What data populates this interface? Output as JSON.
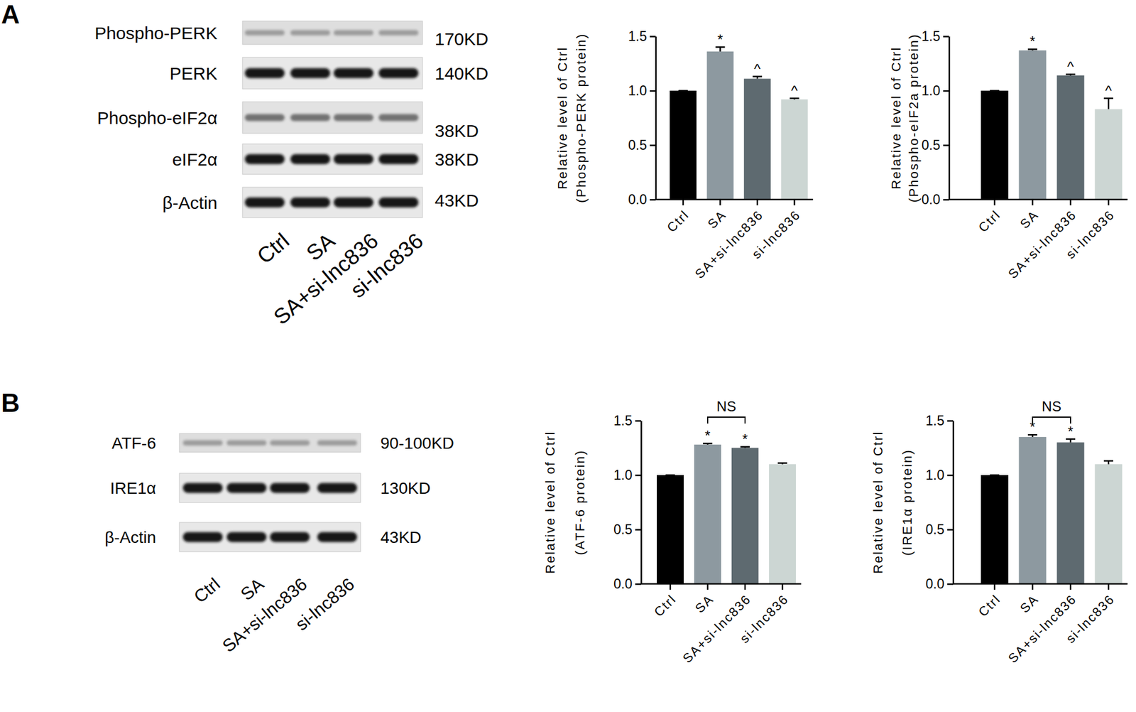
{
  "panels": [
    "A",
    "B"
  ],
  "blots": [
    {
      "rows": [
        {
          "label": "Phospho-PERK",
          "size": "170KD"
        },
        {
          "label": "PERK",
          "size": "140KD"
        },
        {
          "label": "Phospho-eIF2α",
          "size": "38KD"
        },
        {
          "label": "eIF2α",
          "size": "38KD"
        },
        {
          "label": "β-Actin",
          "size": "43KD"
        }
      ],
      "lanes": [
        "Ctrl",
        "SA",
        "SA+si-lnc836",
        "si-lnc836"
      ]
    },
    {
      "rows": [
        {
          "label": "ATF-6",
          "size": "90-100KD"
        },
        {
          "label": "IRE1α",
          "size": "130KD"
        },
        {
          "label": "β-Actin",
          "size": "43KD"
        }
      ],
      "lanes": [
        "Ctrl",
        "SA",
        "SA+si-lnc836",
        "si-lnc836"
      ]
    }
  ],
  "chart_data": [
    {
      "type": "bar",
      "ylabel": [
        "Relative level of Ctrl",
        "(Phospho-PERK protein)"
      ],
      "categories": [
        "Ctrl",
        "SA",
        "SA+si-lnc836",
        "si-lnc836"
      ],
      "values": [
        1.0,
        1.36,
        1.11,
        0.92
      ],
      "errors": [
        0,
        0.04,
        0.02,
        0.01
      ],
      "colors": [
        "#000000",
        "#8d99a0",
        "#5e6a70",
        "#ccd6d3"
      ],
      "ylim": [
        0,
        1.5
      ],
      "yticks": [
        {
          "value": 0,
          "label": "0.0"
        },
        {
          "value": 0.5,
          "label": "0.5"
        },
        {
          "value": 1,
          "label": "1.0"
        },
        {
          "value": 1.5,
          "label": "1.5"
        }
      ],
      "annotations": [
        {
          "category": "SA",
          "text": "*"
        },
        {
          "category": "SA+si-lnc836",
          "text": "^"
        },
        {
          "category": "si-lnc836",
          "text": "^"
        }
      ]
    },
    {
      "type": "bar",
      "ylabel": [
        "Relative level of Ctrl",
        "(Phospho-eIF2a protein)"
      ],
      "categories": [
        "Ctrl",
        "SA",
        "SA+si-lnc836",
        "si-lnc836"
      ],
      "values": [
        1.0,
        1.37,
        1.14,
        0.83
      ],
      "errors": [
        0,
        0.01,
        0.01,
        0.1
      ],
      "colors": [
        "#000000",
        "#8d99a0",
        "#5e6a70",
        "#ccd6d3"
      ],
      "ylim": [
        0,
        1.5
      ],
      "yticks": [
        {
          "value": 0,
          "label": "0.0"
        },
        {
          "value": 0.5,
          "label": "0.5"
        },
        {
          "value": 1,
          "label": "1.0"
        },
        {
          "value": 1.5,
          "label": "1.5"
        }
      ],
      "annotations": [
        {
          "category": "SA",
          "text": "*"
        },
        {
          "category": "SA+si-lnc836",
          "text": "^"
        },
        {
          "category": "si-lnc836",
          "text": "^"
        }
      ]
    },
    {
      "type": "bar",
      "ylabel": [
        "Relative level of Ctrl",
        "(ATF-6 protein)"
      ],
      "categories": [
        "Ctrl",
        "SA",
        "SA+si-lnc836",
        "si-lnc836"
      ],
      "values": [
        1.0,
        1.28,
        1.25,
        1.1
      ],
      "errors": [
        0,
        0.01,
        0.01,
        0.01
      ],
      "colors": [
        "#000000",
        "#8d99a0",
        "#5e6a70",
        "#ccd6d3"
      ],
      "ylim": [
        0,
        1.5
      ],
      "yticks": [
        {
          "value": 0,
          "label": "0.0"
        },
        {
          "value": 0.5,
          "label": "0.5"
        },
        {
          "value": 1,
          "label": "1.0"
        },
        {
          "value": 1.5,
          "label": "1.5"
        }
      ],
      "annotations": [
        {
          "category": "SA",
          "text": "*"
        },
        {
          "category": "SA+si-lnc836",
          "text": "*"
        }
      ],
      "brackets": [
        {
          "from": "SA",
          "to": "SA+si-lnc836",
          "text": "NS"
        }
      ]
    },
    {
      "type": "bar",
      "ylabel": [
        "Relative level of Ctrl",
        "(IRE1α protein)"
      ],
      "categories": [
        "Ctrl",
        "SA",
        "SA+si-lnc836",
        "si-lnc836"
      ],
      "values": [
        1.0,
        1.35,
        1.3,
        1.1
      ],
      "errors": [
        0,
        0.02,
        0.03,
        0.03
      ],
      "colors": [
        "#000000",
        "#8d99a0",
        "#5e6a70",
        "#ccd6d3"
      ],
      "ylim": [
        0,
        1.5
      ],
      "yticks": [
        {
          "value": 0,
          "label": "0.0"
        },
        {
          "value": 0.5,
          "label": "0.5"
        },
        {
          "value": 1,
          "label": "1.0"
        },
        {
          "value": 1.5,
          "label": "1.5"
        }
      ],
      "annotations": [
        {
          "category": "SA",
          "text": "*"
        },
        {
          "category": "SA+si-lnc836",
          "text": "*"
        }
      ],
      "brackets": [
        {
          "from": "SA",
          "to": "SA+si-lnc836",
          "text": "NS"
        }
      ]
    }
  ]
}
